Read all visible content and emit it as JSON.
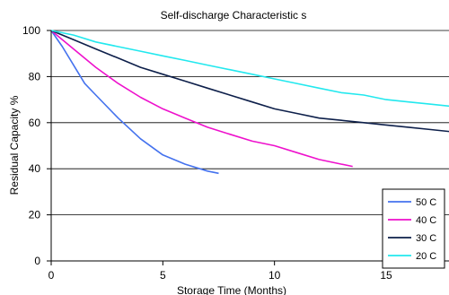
{
  "chart_data": {
    "type": "line",
    "title": "Self-discharge  Characteristic s",
    "xlabel": "Storage Time (Months)",
    "ylabel": "Residual Capacity %",
    "xlim": [
      0,
      18
    ],
    "ylim": [
      0,
      100
    ],
    "xticks": [
      0,
      5,
      10,
      15
    ],
    "yticks": [
      0,
      20,
      40,
      60,
      80,
      100
    ],
    "grid": "horizontal",
    "legend": "bottom-right",
    "series": [
      {
        "name": "50 C",
        "color": "#4472ee",
        "points": [
          [
            0,
            100
          ],
          [
            0.5,
            93
          ],
          [
            1,
            85
          ],
          [
            1.5,
            77
          ],
          [
            2,
            72
          ],
          [
            3,
            62
          ],
          [
            4,
            53
          ],
          [
            5,
            46
          ],
          [
            6,
            42
          ],
          [
            7,
            39
          ],
          [
            7.5,
            38
          ]
        ]
      },
      {
        "name": "40 C",
        "color": "#ee11cc",
        "points": [
          [
            0,
            100
          ],
          [
            1,
            92
          ],
          [
            2,
            84
          ],
          [
            3,
            77
          ],
          [
            4,
            71
          ],
          [
            5,
            66
          ],
          [
            6,
            62
          ],
          [
            7,
            58
          ],
          [
            8,
            55
          ],
          [
            9,
            52
          ],
          [
            10,
            50
          ],
          [
            11,
            47
          ],
          [
            12,
            44
          ],
          [
            13,
            42
          ],
          [
            13.5,
            41
          ]
        ]
      },
      {
        "name": "30 C",
        "color": "#0d1f4a",
        "points": [
          [
            0,
            100
          ],
          [
            1,
            96
          ],
          [
            2,
            92
          ],
          [
            3,
            88
          ],
          [
            4,
            84
          ],
          [
            5,
            81
          ],
          [
            6,
            78
          ],
          [
            7,
            75
          ],
          [
            8,
            72
          ],
          [
            9,
            69
          ],
          [
            10,
            66
          ],
          [
            11,
            64
          ],
          [
            12,
            62
          ],
          [
            13,
            61
          ],
          [
            14,
            60
          ],
          [
            15,
            59
          ],
          [
            16,
            58
          ],
          [
            17,
            57
          ],
          [
            18,
            56
          ]
        ]
      },
      {
        "name": "20 C",
        "color": "#22e8ee",
        "points": [
          [
            0,
            100
          ],
          [
            1,
            98
          ],
          [
            2,
            95
          ],
          [
            3,
            93
          ],
          [
            4,
            91
          ],
          [
            5,
            89
          ],
          [
            6,
            87
          ],
          [
            7,
            85
          ],
          [
            8,
            83
          ],
          [
            9,
            81
          ],
          [
            10,
            79
          ],
          [
            11,
            77
          ],
          [
            12,
            75
          ],
          [
            13,
            73
          ],
          [
            14,
            72
          ],
          [
            15,
            70
          ],
          [
            16,
            69
          ],
          [
            17,
            68
          ],
          [
            18,
            67
          ]
        ]
      }
    ]
  }
}
